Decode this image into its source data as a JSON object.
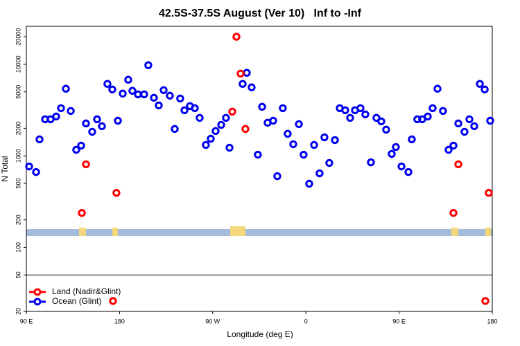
{
  "chart_data": {
    "type": "scatter",
    "title": "42.5S-37.5S August (Ver 10)   Inf to -Inf",
    "x_label": "Longitude (deg E)",
    "y_label": "N Total",
    "log_y": true,
    "xlim": [
      90,
      540
    ],
    "xticks": [
      {
        "value": 90,
        "label": "90 E"
      },
      180,
      {
        "value": 270,
        "label": "90 W"
      },
      {
        "value": 360,
        "label": "0"
      },
      {
        "value": 450,
        "label": "90 E"
      },
      {
        "value": 540,
        "label": "180"
      }
    ],
    "ylim": [
      20,
      26000
    ],
    "yticks": [
      20,
      50,
      100,
      200,
      500,
      1000,
      2000,
      5000,
      10000,
      20000
    ],
    "legend": "bottom-left",
    "series": [
      {
        "name": "Land (Nadir&Glint)",
        "color": "#ff0000",
        "x": [
          143.6,
          147.6,
          177.0,
          288.9,
          292.9,
          296.9,
          301.6,
          173.7,
          502.5,
          507.2,
          536.6,
          533.3
        ],
        "values": [
          238,
          808,
          394,
          3040,
          20000,
          7920,
          1966,
          26,
          238,
          808,
          394,
          26
        ]
      },
      {
        "name": "Ocean (Glint)",
        "color": "#0000ee",
        "x": [
          92.7,
          99.4,
          102.7,
          108.1,
          113.4,
          118.8,
          123.5,
          128.2,
          132.9,
          138.2,
          142.9,
          147.6,
          153.6,
          158.3,
          163.0,
          168.3,
          173.0,
          178.4,
          183.1,
          188.4,
          192.4,
          197.8,
          203.8,
          207.8,
          213.2,
          217.9,
          222.6,
          228.6,
          233.3,
          238.6,
          242.7,
          248.0,
          252.7,
          257.4,
          263.4,
          268.1,
          272.8,
          278.2,
          282.8,
          286.2,
          298.9,
          302.9,
          307.6,
          313.6,
          317.7,
          323.0,
          328.4,
          332.4,
          337.7,
          342.4,
          347.8,
          353.2,
          357.8,
          363.2,
          367.9,
          373.2,
          377.9,
          382.6,
          388.0,
          392.7,
          398.0,
          402.7,
          407.4,
          412.7,
          417.4,
          422.8,
          428.1,
          432.8,
          437.5,
          442.9,
          446.9,
          452.3,
          459.0,
          462.3,
          467.6,
          472.3,
          477.7,
          482.4,
          487.1,
          492.4,
          497.8,
          502.5,
          507.2,
          513.2,
          517.9,
          522.6,
          528.0,
          532.7,
          538.0
        ],
        "values": [
          766,
          666,
          1514,
          2508,
          2508,
          2690,
          3318,
          5408,
          3092,
          1164,
          1294,
          2260,
          1832,
          2508,
          2108,
          6110,
          5310,
          2420,
          4786,
          6780,
          5132,
          4700,
          4700,
          9780,
          4310,
          3556,
          5220,
          4540,
          1966,
          4232,
          3148,
          3494,
          3318,
          2600,
          1316,
          1538,
          1866,
          2180,
          2600,
          1228,
          6110,
          8072,
          5600,
          1030,
          3436,
          2300,
          2420,
          600,
          3318,
          1740,
          1340,
          2220,
          1030,
          496,
          1316,
          644,
          1594,
          836,
          1486,
          3318,
          3148,
          2600,
          3148,
          3318,
          2838,
          850,
          2600,
          2380,
          1932,
          1050,
          1248,
          766,
          666,
          1514,
          2508,
          2508,
          2690,
          3318,
          5408,
          3092,
          1164,
          1294,
          2260,
          1832,
          2508,
          2108,
          6110,
          5310,
          2420
        ]
      }
    ]
  }
}
